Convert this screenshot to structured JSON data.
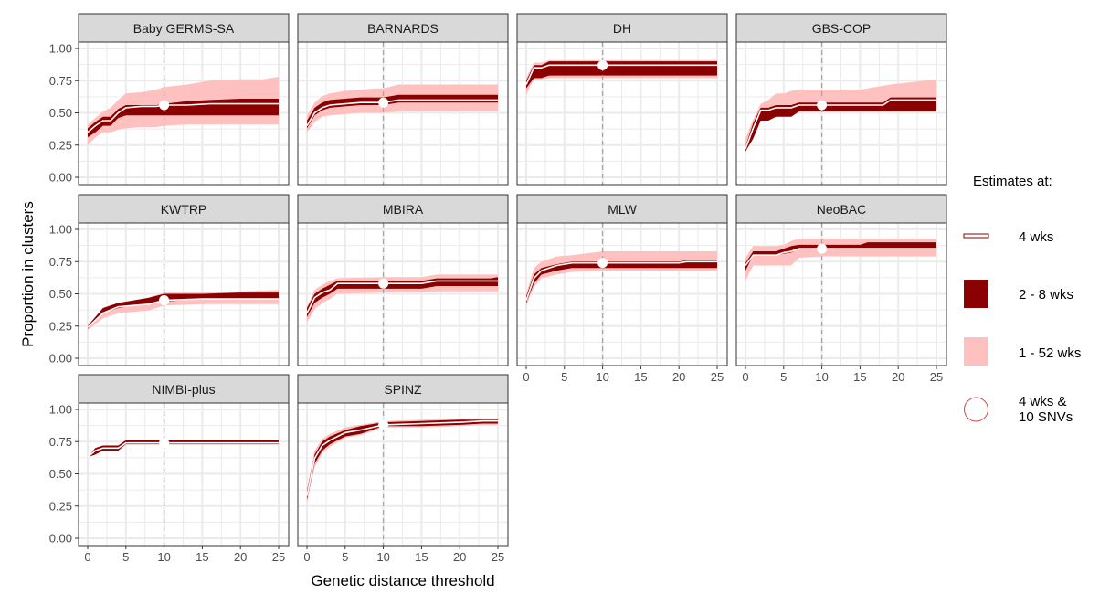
{
  "chart_data": {
    "type": "area",
    "xlabel": "Genetic distance threshold",
    "ylabel": "Proportion in clusters",
    "xlim": [
      0,
      25
    ],
    "ylim": [
      0,
      1
    ],
    "x_ticks": [
      "0",
      "5",
      "10",
      "15",
      "20",
      "25"
    ],
    "y_ticks": [
      "0.00",
      "0.25",
      "0.50",
      "0.75",
      "1.00"
    ],
    "reference_x": 10,
    "grid": true,
    "legend": {
      "title": "Estimates at:",
      "placement": "right",
      "entries": [
        {
          "label": "4 wks",
          "kind": "line"
        },
        {
          "label": "2 - 8 wks",
          "kind": "inner-band"
        },
        {
          "label": "1 - 52 wks",
          "kind": "outer-band"
        },
        {
          "label": "4 wks &\n10 SNVs",
          "line1": "4 wks &",
          "line2": "10 SNVs",
          "kind": "point"
        }
      ]
    },
    "colors": {
      "inner_band": "#8b0000",
      "outer_band": "#ffc0c0",
      "line": "#ffffff",
      "point": "#ffffff",
      "strip": "#d9d9d9",
      "grid": "#ebebeb",
      "ref_line": "#a6a6a6"
    },
    "panels": [
      {
        "name": "Baby GERMS-SA",
        "x": [
          0,
          1,
          2,
          3,
          4,
          5,
          7,
          9,
          10,
          13,
          16,
          20,
          23,
          25
        ],
        "est": [
          0.35,
          0.4,
          0.44,
          0.44,
          0.5,
          0.54,
          0.55,
          0.55,
          0.56,
          0.56,
          0.57,
          0.57,
          0.57,
          0.57
        ],
        "inner": [
          [
            0.31,
            0.38
          ],
          [
            0.35,
            0.43
          ],
          [
            0.4,
            0.47
          ],
          [
            0.4,
            0.47
          ],
          [
            0.46,
            0.53
          ],
          [
            0.48,
            0.56
          ],
          [
            0.48,
            0.56
          ],
          [
            0.48,
            0.56
          ],
          [
            0.48,
            0.57
          ],
          [
            0.48,
            0.59
          ],
          [
            0.48,
            0.6
          ],
          [
            0.48,
            0.61
          ],
          [
            0.48,
            0.61
          ],
          [
            0.48,
            0.61
          ]
        ],
        "outer": [
          [
            0.25,
            0.41
          ],
          [
            0.31,
            0.46
          ],
          [
            0.35,
            0.51
          ],
          [
            0.35,
            0.54
          ],
          [
            0.37,
            0.6
          ],
          [
            0.38,
            0.65
          ],
          [
            0.39,
            0.66
          ],
          [
            0.39,
            0.68
          ],
          [
            0.4,
            0.7
          ],
          [
            0.41,
            0.72
          ],
          [
            0.41,
            0.75
          ],
          [
            0.41,
            0.76
          ],
          [
            0.41,
            0.76
          ],
          [
            0.41,
            0.78
          ]
        ]
      },
      {
        "name": "BARNARDS",
        "x": [
          0,
          1,
          2,
          3,
          5,
          7,
          9,
          10,
          12,
          25
        ],
        "est": [
          0.4,
          0.5,
          0.54,
          0.56,
          0.57,
          0.58,
          0.58,
          0.58,
          0.6,
          0.6
        ],
        "inner": [
          [
            0.38,
            0.44
          ],
          [
            0.48,
            0.54
          ],
          [
            0.52,
            0.58
          ],
          [
            0.54,
            0.6
          ],
          [
            0.55,
            0.61
          ],
          [
            0.56,
            0.62
          ],
          [
            0.56,
            0.62
          ],
          [
            0.56,
            0.62
          ],
          [
            0.58,
            0.64
          ],
          [
            0.58,
            0.64
          ]
        ],
        "outer": [
          [
            0.35,
            0.48
          ],
          [
            0.43,
            0.58
          ],
          [
            0.47,
            0.63
          ],
          [
            0.48,
            0.65
          ],
          [
            0.49,
            0.67
          ],
          [
            0.5,
            0.68
          ],
          [
            0.5,
            0.69
          ],
          [
            0.5,
            0.69
          ],
          [
            0.51,
            0.72
          ],
          [
            0.51,
            0.72
          ]
        ]
      },
      {
        "name": "DH",
        "x": [
          0,
          1,
          2,
          3,
          10,
          25
        ],
        "est": [
          0.72,
          0.85,
          0.85,
          0.87,
          0.87,
          0.87
        ],
        "inner": [
          [
            0.69,
            0.75
          ],
          [
            0.77,
            0.87
          ],
          [
            0.77,
            0.87
          ],
          [
            0.79,
            0.9
          ],
          [
            0.79,
            0.9
          ],
          [
            0.79,
            0.9
          ]
        ],
        "outer": [
          [
            0.64,
            0.77
          ],
          [
            0.76,
            0.89
          ],
          [
            0.76,
            0.89
          ],
          [
            0.77,
            0.91
          ],
          [
            0.77,
            0.91
          ],
          [
            0.77,
            0.91
          ]
        ]
      },
      {
        "name": "GBS-COP",
        "x": [
          0,
          1,
          2,
          3,
          4,
          5,
          6,
          7,
          10,
          15,
          18,
          19,
          25
        ],
        "est": [
          0.22,
          0.38,
          0.52,
          0.52,
          0.54,
          0.54,
          0.54,
          0.56,
          0.56,
          0.56,
          0.56,
          0.6,
          0.6
        ],
        "inner": [
          [
            0.2,
            0.24
          ],
          [
            0.3,
            0.42
          ],
          [
            0.44,
            0.54
          ],
          [
            0.44,
            0.54
          ],
          [
            0.47,
            0.56
          ],
          [
            0.47,
            0.56
          ],
          [
            0.47,
            0.56
          ],
          [
            0.51,
            0.58
          ],
          [
            0.51,
            0.58
          ],
          [
            0.51,
            0.58
          ],
          [
            0.51,
            0.58
          ],
          [
            0.51,
            0.62
          ],
          [
            0.51,
            0.62
          ]
        ],
        "outer": [
          [
            0.22,
            0.3
          ],
          [
            0.38,
            0.45
          ],
          [
            0.52,
            0.57
          ],
          [
            0.52,
            0.6
          ],
          [
            0.54,
            0.65
          ],
          [
            0.54,
            0.65
          ],
          [
            0.54,
            0.67
          ],
          [
            0.56,
            0.68
          ],
          [
            0.56,
            0.68
          ],
          [
            0.56,
            0.68
          ],
          [
            0.56,
            0.71
          ],
          [
            0.56,
            0.72
          ],
          [
            0.56,
            0.76
          ]
        ]
      },
      {
        "name": "KWTRP",
        "x": [
          0,
          2,
          4,
          6,
          8,
          10,
          15,
          20,
          25
        ],
        "est": [
          0.24,
          0.35,
          0.4,
          0.41,
          0.42,
          0.45,
          0.46,
          0.46,
          0.46
        ],
        "inner": [
          [
            0.23,
            0.25
          ],
          [
            0.35,
            0.39
          ],
          [
            0.39,
            0.43
          ],
          [
            0.41,
            0.45
          ],
          [
            0.42,
            0.47
          ],
          [
            0.44,
            0.5
          ],
          [
            0.46,
            0.5
          ],
          [
            0.46,
            0.51
          ],
          [
            0.46,
            0.51
          ]
        ],
        "outer": [
          [
            0.22,
            0.26
          ],
          [
            0.31,
            0.38
          ],
          [
            0.35,
            0.42
          ],
          [
            0.36,
            0.44
          ],
          [
            0.37,
            0.47
          ],
          [
            0.41,
            0.51
          ],
          [
            0.42,
            0.51
          ],
          [
            0.42,
            0.52
          ],
          [
            0.42,
            0.53
          ]
        ]
      },
      {
        "name": "MBIRA",
        "x": [
          0,
          1,
          2,
          3,
          4,
          10,
          15,
          17,
          24,
          25
        ],
        "est": [
          0.35,
          0.47,
          0.51,
          0.53,
          0.58,
          0.58,
          0.58,
          0.6,
          0.6,
          0.6
        ],
        "inner": [
          [
            0.32,
            0.39
          ],
          [
            0.43,
            0.5
          ],
          [
            0.47,
            0.54
          ],
          [
            0.5,
            0.57
          ],
          [
            0.54,
            0.6
          ],
          [
            0.54,
            0.6
          ],
          [
            0.54,
            0.6
          ],
          [
            0.56,
            0.62
          ],
          [
            0.56,
            0.62
          ],
          [
            0.56,
            0.63
          ]
        ],
        "outer": [
          [
            0.28,
            0.4
          ],
          [
            0.38,
            0.53
          ],
          [
            0.43,
            0.57
          ],
          [
            0.46,
            0.6
          ],
          [
            0.5,
            0.62
          ],
          [
            0.51,
            0.63
          ],
          [
            0.51,
            0.63
          ],
          [
            0.52,
            0.65
          ],
          [
            0.52,
            0.65
          ],
          [
            0.52,
            0.65
          ]
        ]
      },
      {
        "name": "MLW",
        "x": [
          0,
          1,
          2,
          4,
          6,
          10,
          20,
          21,
          25
        ],
        "est": [
          0.45,
          0.62,
          0.68,
          0.72,
          0.74,
          0.74,
          0.74,
          0.75,
          0.75
        ],
        "inner": [
          [
            0.43,
            0.48
          ],
          [
            0.58,
            0.65
          ],
          [
            0.65,
            0.7
          ],
          [
            0.68,
            0.73
          ],
          [
            0.7,
            0.75
          ],
          [
            0.7,
            0.75
          ],
          [
            0.7,
            0.75
          ],
          [
            0.7,
            0.76
          ],
          [
            0.7,
            0.76
          ]
        ],
        "outer": [
          [
            0.41,
            0.5
          ],
          [
            0.55,
            0.7
          ],
          [
            0.62,
            0.75
          ],
          [
            0.65,
            0.79
          ],
          [
            0.67,
            0.8
          ],
          [
            0.68,
            0.83
          ],
          [
            0.68,
            0.83
          ],
          [
            0.68,
            0.83
          ],
          [
            0.68,
            0.83
          ]
        ]
      },
      {
        "name": "NeoBAC",
        "x": [
          0,
          1,
          4,
          5,
          6,
          7,
          10,
          15,
          16,
          25
        ],
        "est": [
          0.72,
          0.8,
          0.8,
          0.82,
          0.83,
          0.85,
          0.85,
          0.85,
          0.85,
          0.85
        ],
        "inner": [
          [
            0.68,
            0.74
          ],
          [
            0.8,
            0.83
          ],
          [
            0.8,
            0.83
          ],
          [
            0.81,
            0.85
          ],
          [
            0.82,
            0.87
          ],
          [
            0.85,
            0.88
          ],
          [
            0.85,
            0.88
          ],
          [
            0.85,
            0.88
          ],
          [
            0.85,
            0.9
          ],
          [
            0.85,
            0.9
          ]
        ],
        "outer": [
          [
            0.6,
            0.78
          ],
          [
            0.72,
            0.87
          ],
          [
            0.72,
            0.87
          ],
          [
            0.72,
            0.88
          ],
          [
            0.72,
            0.91
          ],
          [
            0.78,
            0.93
          ],
          [
            0.79,
            0.93
          ],
          [
            0.79,
            0.93
          ],
          [
            0.79,
            0.93
          ],
          [
            0.79,
            0.93
          ]
        ]
      },
      {
        "name": "NIMBI-plus",
        "x": [
          0,
          1,
          2,
          4,
          5,
          25
        ],
        "est": [
          0.63,
          0.68,
          0.7,
          0.7,
          0.74,
          0.74
        ],
        "inner": [
          [
            0.63,
            0.63
          ],
          [
            0.65,
            0.7
          ],
          [
            0.68,
            0.72
          ],
          [
            0.68,
            0.72
          ],
          [
            0.73,
            0.76
          ],
          [
            0.73,
            0.76
          ]
        ],
        "outer": [
          [
            0.63,
            0.63
          ],
          [
            0.65,
            0.7
          ],
          [
            0.68,
            0.72
          ],
          [
            0.68,
            0.72
          ],
          [
            0.73,
            0.76
          ],
          [
            0.73,
            0.76
          ]
        ]
      },
      {
        "name": "SPINZ",
        "x": [
          0,
          1,
          2,
          3,
          5,
          7,
          10,
          15,
          20,
          23,
          25
        ],
        "est": [
          0.33,
          0.62,
          0.72,
          0.76,
          0.82,
          0.84,
          0.88,
          0.89,
          0.9,
          0.91,
          0.91
        ],
        "inner": [
          [
            0.3,
            0.37
          ],
          [
            0.58,
            0.65
          ],
          [
            0.68,
            0.75
          ],
          [
            0.73,
            0.79
          ],
          [
            0.79,
            0.84
          ],
          [
            0.81,
            0.87
          ],
          [
            0.87,
            0.9
          ],
          [
            0.87,
            0.91
          ],
          [
            0.88,
            0.92
          ],
          [
            0.89,
            0.92
          ],
          [
            0.89,
            0.92
          ]
        ],
        "outer": [
          [
            0.28,
            0.38
          ],
          [
            0.55,
            0.68
          ],
          [
            0.66,
            0.77
          ],
          [
            0.71,
            0.81
          ],
          [
            0.78,
            0.86
          ],
          [
            0.8,
            0.88
          ],
          [
            0.86,
            0.91
          ],
          [
            0.86,
            0.92
          ],
          [
            0.87,
            0.93
          ],
          [
            0.88,
            0.93
          ],
          [
            0.88,
            0.93
          ]
        ]
      }
    ]
  }
}
